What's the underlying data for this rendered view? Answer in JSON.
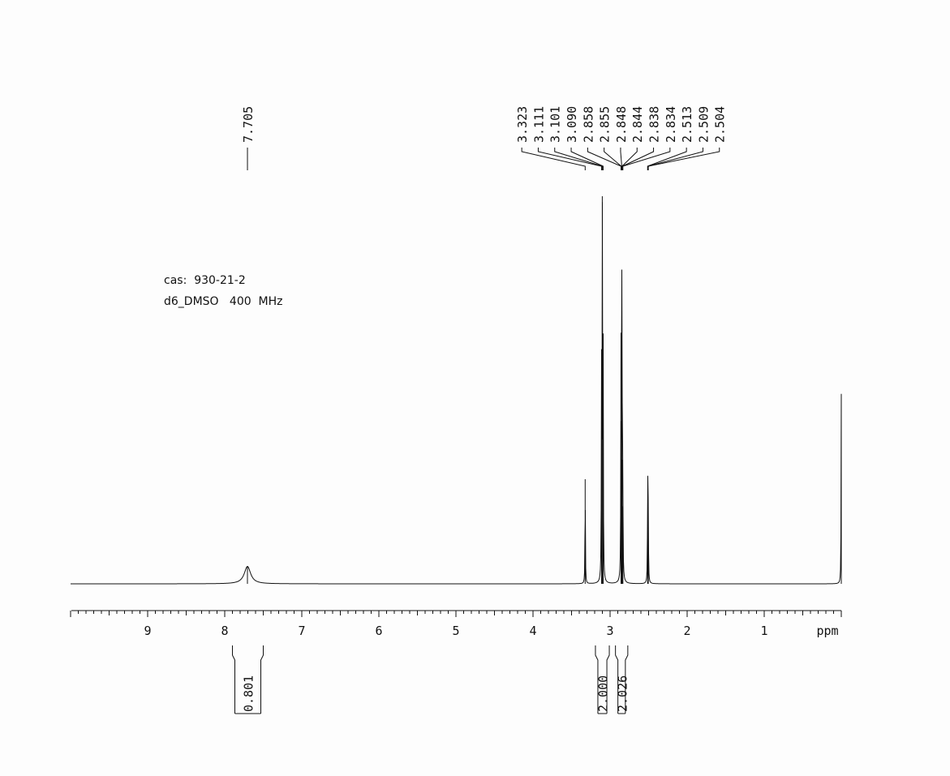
{
  "chart_data": {
    "type": "line",
    "xlabel": "ppm",
    "xlim": [
      10.0,
      0.0
    ],
    "x_reversed": true,
    "x_ticks": [
      9,
      8,
      7,
      6,
      5,
      4,
      3,
      2,
      1
    ],
    "annotation": {
      "cas": "cas:  930-21-2",
      "conditions": "d6_DMSO   400  MHz"
    },
    "peak_groups": [
      {
        "labels": [
          "7.705"
        ]
      },
      {
        "labels": [
          "3.323",
          "3.111",
          "3.101",
          "3.090",
          "2.858",
          "2.855",
          "2.848",
          "2.844",
          "2.838",
          "2.834",
          "2.513",
          "2.509",
          "2.504"
        ]
      }
    ],
    "peaks": [
      {
        "shift": 7.705,
        "height": 0.045,
        "width": 0.05
      },
      {
        "shift": 3.323,
        "height": 0.27,
        "width": 0.003
      },
      {
        "shift": 3.111,
        "height": 0.515,
        "width": 0.003
      },
      {
        "shift": 3.101,
        "height": 1.0,
        "width": 0.003
      },
      {
        "shift": 3.09,
        "height": 0.59,
        "width": 0.003
      },
      {
        "shift": 2.858,
        "height": 0.36,
        "width": 0.003
      },
      {
        "shift": 2.855,
        "height": 0.42,
        "width": 0.003
      },
      {
        "shift": 2.848,
        "height": 0.585,
        "width": 0.003
      },
      {
        "shift": 2.844,
        "height": 0.32,
        "width": 0.003
      },
      {
        "shift": 2.838,
        "height": 0.2,
        "width": 0.003
      },
      {
        "shift": 2.834,
        "height": 0.15,
        "width": 0.003
      },
      {
        "shift": 2.513,
        "height": 0.14,
        "width": 0.003
      },
      {
        "shift": 2.509,
        "height": 0.215,
        "width": 0.003
      },
      {
        "shift": 2.504,
        "height": 0.14,
        "width": 0.003
      },
      {
        "shift": 0.0,
        "height": 0.49,
        "width": 0.003
      }
    ],
    "integrals": [
      {
        "from": 7.9,
        "to": 7.5,
        "value": "0.801"
      },
      {
        "from": 3.19,
        "to": 3.01,
        "value": "2.000"
      },
      {
        "from": 2.93,
        "to": 2.77,
        "value": "2.026"
      }
    ]
  }
}
